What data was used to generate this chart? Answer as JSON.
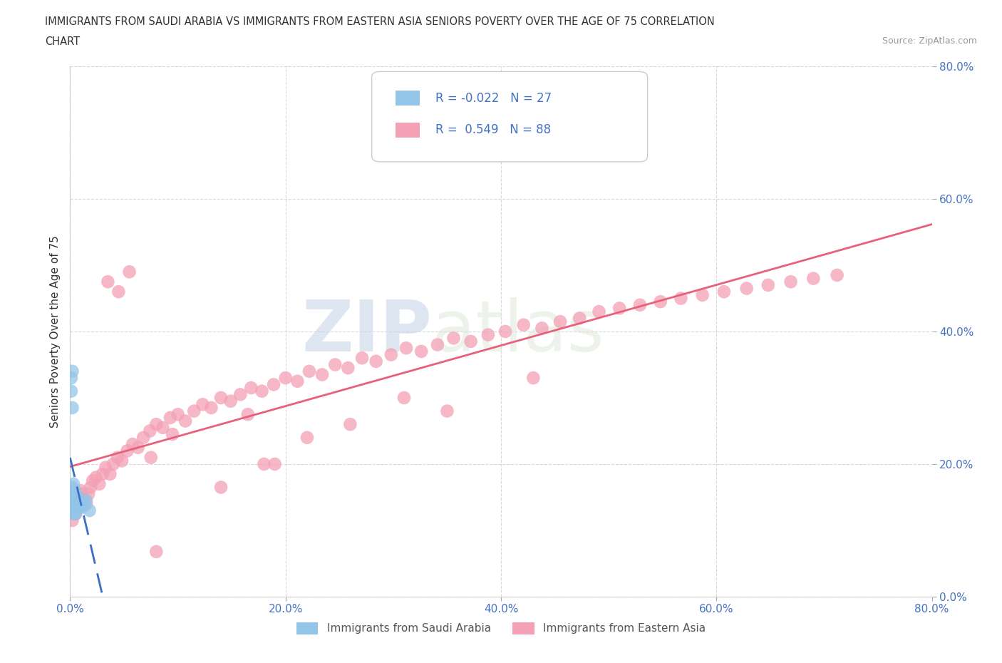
{
  "title_line1": "IMMIGRANTS FROM SAUDI ARABIA VS IMMIGRANTS FROM EASTERN ASIA SENIORS POVERTY OVER THE AGE OF 75 CORRELATION",
  "title_line2": "CHART",
  "source": "Source: ZipAtlas.com",
  "ylabel": "Seniors Poverty Over the Age of 75",
  "r_saudi": -0.022,
  "n_saudi": 27,
  "r_eastern": 0.549,
  "n_eastern": 88,
  "color_saudi": "#93c5e8",
  "color_eastern": "#f4a0b5",
  "color_trend_saudi": "#3a6fc4",
  "color_trend_eastern": "#e8607a",
  "watermark_zip": "ZIP",
  "watermark_atlas": "atlas",
  "xlim": [
    0.0,
    0.8
  ],
  "ylim": [
    0.0,
    0.8
  ],
  "yticks": [
    0.0,
    0.2,
    0.4,
    0.6,
    0.8
  ],
  "xticks": [
    0.0,
    0.2,
    0.4,
    0.6,
    0.8
  ],
  "grid_color": "#d0d0d0",
  "saudi_x": [
    0.001,
    0.001,
    0.002,
    0.002,
    0.002,
    0.002,
    0.003,
    0.003,
    0.003,
    0.003,
    0.004,
    0.004,
    0.004,
    0.005,
    0.005,
    0.005,
    0.006,
    0.006,
    0.007,
    0.007,
    0.008,
    0.009,
    0.01,
    0.011,
    0.013,
    0.015,
    0.018
  ],
  "saudi_y": [
    0.33,
    0.31,
    0.34,
    0.285,
    0.165,
    0.145,
    0.17,
    0.155,
    0.14,
    0.125,
    0.16,
    0.145,
    0.13,
    0.155,
    0.14,
    0.125,
    0.15,
    0.135,
    0.15,
    0.135,
    0.14,
    0.135,
    0.145,
    0.135,
    0.14,
    0.145,
    0.13
  ],
  "eastern_x": [
    0.002,
    0.004,
    0.005,
    0.006,
    0.007,
    0.008,
    0.009,
    0.01,
    0.011,
    0.013,
    0.015,
    0.017,
    0.019,
    0.021,
    0.024,
    0.027,
    0.03,
    0.033,
    0.037,
    0.04,
    0.044,
    0.048,
    0.053,
    0.058,
    0.063,
    0.068,
    0.074,
    0.08,
    0.086,
    0.093,
    0.1,
    0.107,
    0.115,
    0.123,
    0.131,
    0.14,
    0.149,
    0.158,
    0.168,
    0.178,
    0.189,
    0.2,
    0.211,
    0.222,
    0.234,
    0.246,
    0.258,
    0.271,
    0.284,
    0.298,
    0.312,
    0.326,
    0.341,
    0.356,
    0.372,
    0.388,
    0.404,
    0.421,
    0.438,
    0.455,
    0.473,
    0.491,
    0.51,
    0.529,
    0.548,
    0.567,
    0.587,
    0.607,
    0.628,
    0.648,
    0.669,
    0.69,
    0.712,
    0.35,
    0.18,
    0.22,
    0.26,
    0.31,
    0.08,
    0.43,
    0.095,
    0.14,
    0.165,
    0.19,
    0.045,
    0.055,
    0.075,
    0.035
  ],
  "eastern_y": [
    0.115,
    0.13,
    0.125,
    0.14,
    0.135,
    0.15,
    0.145,
    0.16,
    0.155,
    0.145,
    0.14,
    0.155,
    0.165,
    0.175,
    0.18,
    0.17,
    0.185,
    0.195,
    0.185,
    0.2,
    0.21,
    0.205,
    0.22,
    0.23,
    0.225,
    0.24,
    0.25,
    0.26,
    0.255,
    0.27,
    0.275,
    0.265,
    0.28,
    0.29,
    0.285,
    0.3,
    0.295,
    0.305,
    0.315,
    0.31,
    0.32,
    0.33,
    0.325,
    0.34,
    0.335,
    0.35,
    0.345,
    0.36,
    0.355,
    0.365,
    0.375,
    0.37,
    0.38,
    0.39,
    0.385,
    0.395,
    0.4,
    0.41,
    0.405,
    0.415,
    0.42,
    0.43,
    0.435,
    0.44,
    0.445,
    0.45,
    0.455,
    0.46,
    0.465,
    0.47,
    0.475,
    0.48,
    0.485,
    0.28,
    0.2,
    0.24,
    0.26,
    0.3,
    0.068,
    0.33,
    0.245,
    0.165,
    0.275,
    0.2,
    0.46,
    0.49,
    0.21,
    0.475
  ],
  "legend_box_color": "#f0f0f0",
  "legend_box_edge": "#cccccc"
}
